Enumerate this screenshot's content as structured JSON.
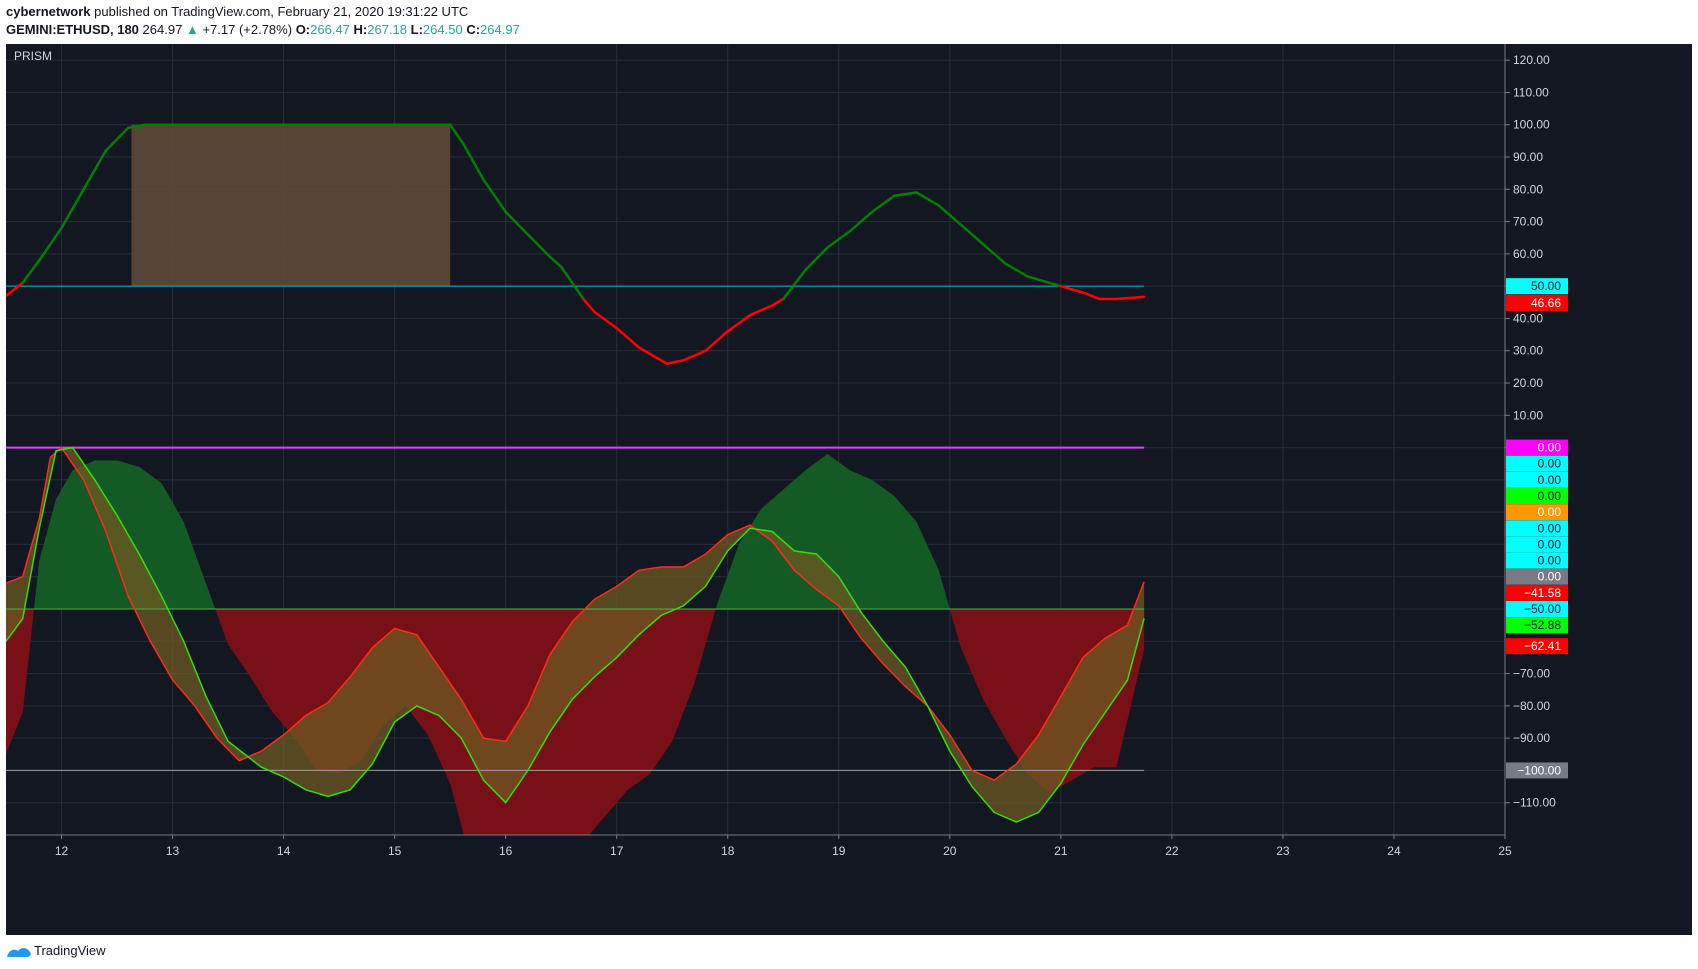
{
  "header": {
    "author": "cybernetwork",
    "published_text": "published on TradingView.com, February 21, 2020 19:31:22 UTC",
    "symbol": "GEMINI:ETHUSD, 180",
    "last": "264.97",
    "arrow": "▲",
    "change": "+7.17 (+2.78%)",
    "o_label": "O:",
    "o_value": "266.47",
    "h_label": "H:",
    "h_value": "267.18",
    "l_label": "L:",
    "l_value": "264.50",
    "c_label": "C:",
    "c_value": "264.97"
  },
  "footer": {
    "brand": "TradingView"
  },
  "chart_data": {
    "type": "line",
    "indicator": "PRISM",
    "x_axis_labels": [
      {
        "label": "12",
        "t": 12
      },
      {
        "label": "13",
        "t": 13
      },
      {
        "label": "14",
        "t": 14
      },
      {
        "label": "15",
        "t": 15
      },
      {
        "label": "16",
        "t": 16
      },
      {
        "label": "17",
        "t": 17
      },
      {
        "label": "18",
        "t": 18
      },
      {
        "label": "19",
        "t": 19
      },
      {
        "label": "20",
        "t": 20
      },
      {
        "label": "21",
        "t": 21
      },
      {
        "label": "22",
        "t": 22
      },
      {
        "label": "23",
        "t": 23
      },
      {
        "label": "24",
        "t": 24
      },
      {
        "label": "25",
        "t": 25
      }
    ],
    "x_range": [
      11.5,
      25.0
    ],
    "y_range": [
      -120,
      125
    ],
    "y_ticks": [
      "120.00",
      "110.00",
      "100.00",
      "90.00",
      "80.00",
      "70.00",
      "60.00",
      "50.00",
      "40.00",
      "30.00",
      "20.00",
      "10.00",
      "0.00",
      "−70.00",
      "−80.00",
      "−90.00",
      "−110.00"
    ],
    "y_tick_values": [
      120,
      110,
      100,
      90,
      80,
      70,
      60,
      50,
      40,
      30,
      20,
      10,
      0,
      -70,
      -80,
      -90,
      -110
    ],
    "grid": true,
    "upper_oscillator": {
      "levels": [
        50
      ],
      "points": [
        [
          11.5,
          47
        ],
        [
          11.65,
          51
        ],
        [
          11.8,
          58
        ],
        [
          12.0,
          68
        ],
        [
          12.2,
          80
        ],
        [
          12.4,
          92
        ],
        [
          12.6,
          99
        ],
        [
          12.75,
          100
        ],
        [
          13.0,
          100
        ],
        [
          13.5,
          100
        ],
        [
          14.0,
          100
        ],
        [
          14.5,
          100
        ],
        [
          15.0,
          100
        ],
        [
          15.5,
          100
        ],
        [
          15.62,
          94
        ],
        [
          15.8,
          83
        ],
        [
          16.0,
          73
        ],
        [
          16.2,
          66
        ],
        [
          16.4,
          59
        ],
        [
          16.5,
          56
        ],
        [
          16.7,
          46
        ],
        [
          16.8,
          42
        ],
        [
          17.0,
          37
        ],
        [
          17.2,
          31
        ],
        [
          17.45,
          26
        ],
        [
          17.6,
          27
        ],
        [
          17.8,
          30
        ],
        [
          18.0,
          36
        ],
        [
          18.2,
          41
        ],
        [
          18.4,
          44
        ],
        [
          18.5,
          46
        ],
        [
          18.7,
          55
        ],
        [
          18.9,
          62
        ],
        [
          19.1,
          67
        ],
        [
          19.3,
          73
        ],
        [
          19.5,
          78
        ],
        [
          19.7,
          79
        ],
        [
          19.9,
          75
        ],
        [
          20.1,
          69
        ],
        [
          20.3,
          63
        ],
        [
          20.5,
          57
        ],
        [
          20.7,
          53
        ],
        [
          20.9,
          51
        ],
        [
          21.0,
          50
        ],
        [
          21.1,
          49
        ],
        [
          21.2,
          48
        ],
        [
          21.35,
          46
        ],
        [
          21.5,
          46
        ],
        [
          21.75,
          46.66
        ]
      ],
      "overbought_zone": {
        "t_start": 12.63,
        "t_end": 15.5,
        "y_low": 50,
        "y_high": 100
      }
    },
    "lower_oscillator": {
      "levels": [
        0,
        -50,
        -100
      ],
      "fast_line": [
        [
          11.5,
          -42
        ],
        [
          11.65,
          -40
        ],
        [
          11.8,
          -22
        ],
        [
          11.9,
          -3
        ],
        [
          12.0,
          0
        ],
        [
          12.2,
          -10
        ],
        [
          12.4,
          -26
        ],
        [
          12.6,
          -46
        ],
        [
          12.8,
          -60
        ],
        [
          13.0,
          -72
        ],
        [
          13.2,
          -80
        ],
        [
          13.4,
          -90
        ],
        [
          13.6,
          -97
        ],
        [
          13.8,
          -94
        ],
        [
          14.0,
          -89
        ],
        [
          14.2,
          -83
        ],
        [
          14.4,
          -79
        ],
        [
          14.6,
          -71
        ],
        [
          14.8,
          -62
        ],
        [
          15.0,
          -56
        ],
        [
          15.2,
          -58
        ],
        [
          15.4,
          -68
        ],
        [
          15.6,
          -78
        ],
        [
          15.8,
          -90
        ],
        [
          16.0,
          -91
        ],
        [
          16.2,
          -80
        ],
        [
          16.4,
          -64
        ],
        [
          16.6,
          -54
        ],
        [
          16.8,
          -47
        ],
        [
          17.0,
          -43
        ],
        [
          17.2,
          -38
        ],
        [
          17.4,
          -37
        ],
        [
          17.6,
          -37
        ],
        [
          17.8,
          -33
        ],
        [
          18.0,
          -27
        ],
        [
          18.2,
          -24
        ],
        [
          18.4,
          -29
        ],
        [
          18.6,
          -38
        ],
        [
          18.8,
          -44
        ],
        [
          19.0,
          -49
        ],
        [
          19.2,
          -59
        ],
        [
          19.4,
          -67
        ],
        [
          19.6,
          -74
        ],
        [
          19.8,
          -80
        ],
        [
          20.0,
          -89
        ],
        [
          20.2,
          -100
        ],
        [
          20.4,
          -103
        ],
        [
          20.6,
          -98
        ],
        [
          20.8,
          -89
        ],
        [
          21.0,
          -77
        ],
        [
          21.2,
          -65
        ],
        [
          21.4,
          -59
        ],
        [
          21.6,
          -55
        ],
        [
          21.75,
          -41.58
        ]
      ],
      "slow_line": [
        [
          11.5,
          -60
        ],
        [
          11.65,
          -53
        ],
        [
          11.8,
          -25
        ],
        [
          11.95,
          -1
        ],
        [
          12.1,
          0
        ],
        [
          12.3,
          -10
        ],
        [
          12.5,
          -21
        ],
        [
          12.7,
          -33
        ],
        [
          12.9,
          -46
        ],
        [
          13.1,
          -60
        ],
        [
          13.3,
          -77
        ],
        [
          13.5,
          -91
        ],
        [
          13.8,
          -99
        ],
        [
          14.0,
          -102
        ],
        [
          14.2,
          -106
        ],
        [
          14.4,
          -108
        ],
        [
          14.6,
          -106
        ],
        [
          14.8,
          -98
        ],
        [
          15.0,
          -85
        ],
        [
          15.2,
          -80
        ],
        [
          15.4,
          -83
        ],
        [
          15.6,
          -90
        ],
        [
          15.8,
          -103
        ],
        [
          16.0,
          -110
        ],
        [
          16.2,
          -100
        ],
        [
          16.4,
          -88
        ],
        [
          16.6,
          -78
        ],
        [
          16.8,
          -71
        ],
        [
          17.0,
          -65
        ],
        [
          17.2,
          -58
        ],
        [
          17.4,
          -52
        ],
        [
          17.6,
          -49
        ],
        [
          17.8,
          -43
        ],
        [
          18.0,
          -32
        ],
        [
          18.2,
          -25
        ],
        [
          18.4,
          -26
        ],
        [
          18.6,
          -32
        ],
        [
          18.8,
          -33
        ],
        [
          19.0,
          -40
        ],
        [
          19.2,
          -51
        ],
        [
          19.4,
          -60
        ],
        [
          19.6,
          -68
        ],
        [
          19.8,
          -80
        ],
        [
          20.0,
          -94
        ],
        [
          20.2,
          -105
        ],
        [
          20.4,
          -113
        ],
        [
          20.6,
          -116
        ],
        [
          20.8,
          -113
        ],
        [
          21.0,
          -104
        ],
        [
          21.2,
          -92
        ],
        [
          21.4,
          -82
        ],
        [
          21.6,
          -72
        ],
        [
          21.75,
          -52.88
        ]
      ],
      "histogram": [
        [
          11.5,
          -95
        ],
        [
          11.65,
          -82
        ],
        [
          11.8,
          -35
        ],
        [
          11.95,
          -16
        ],
        [
          12.1,
          -7
        ],
        [
          12.3,
          -4
        ],
        [
          12.5,
          -4
        ],
        [
          12.7,
          -6
        ],
        [
          12.9,
          -11
        ],
        [
          13.1,
          -23
        ],
        [
          13.3,
          -42
        ],
        [
          13.5,
          -61
        ],
        [
          13.7,
          -71
        ],
        [
          13.9,
          -82
        ],
        [
          14.1,
          -90
        ],
        [
          14.3,
          -100
        ],
        [
          14.5,
          -101
        ],
        [
          14.7,
          -97
        ],
        [
          14.9,
          -86
        ],
        [
          15.1,
          -80
        ],
        [
          15.3,
          -89
        ],
        [
          15.5,
          -104
        ],
        [
          15.7,
          -130
        ],
        [
          15.9,
          -144
        ],
        [
          16.1,
          -141
        ],
        [
          16.3,
          -134
        ],
        [
          16.5,
          -129
        ],
        [
          16.7,
          -122
        ],
        [
          16.9,
          -114
        ],
        [
          17.1,
          -106
        ],
        [
          17.3,
          -101
        ],
        [
          17.5,
          -91
        ],
        [
          17.7,
          -73
        ],
        [
          17.9,
          -49
        ],
        [
          18.1,
          -30
        ],
        [
          18.3,
          -19
        ],
        [
          18.5,
          -13
        ],
        [
          18.7,
          -7
        ],
        [
          18.9,
          -2
        ],
        [
          19.1,
          -7
        ],
        [
          19.3,
          -10
        ],
        [
          19.5,
          -15
        ],
        [
          19.7,
          -23
        ],
        [
          19.9,
          -38
        ],
        [
          20.1,
          -62
        ],
        [
          20.3,
          -78
        ],
        [
          20.5,
          -90
        ],
        [
          20.7,
          -101
        ],
        [
          20.9,
          -107
        ],
        [
          21.1,
          -103
        ],
        [
          21.3,
          -99
        ],
        [
          21.5,
          -99
        ],
        [
          21.75,
          -62.41
        ]
      ]
    },
    "price_labels": [
      {
        "text": "50.00",
        "y": 50,
        "color": "#00ffff",
        "text_color": "#131722"
      },
      {
        "text": "46.66",
        "y": 44.8,
        "color": "#ff0000",
        "text_color": "#ffffff"
      },
      {
        "text": "0.00",
        "y": 0,
        "color": "#ff00ff",
        "text_color": "#ffffff"
      },
      {
        "text": "0.00",
        "y": -5,
        "color": "#00ffff",
        "text_color": "#131722"
      },
      {
        "text": "0.00",
        "y": -10,
        "color": "#00ffff",
        "text_color": "#131722"
      },
      {
        "text": "0.00",
        "y": -15,
        "color": "#00ff00",
        "text_color": "#131722"
      },
      {
        "text": "0.00",
        "y": -20,
        "color": "#ff9800",
        "text_color": "#ffffff"
      },
      {
        "text": "0.00",
        "y": -25,
        "color": "#00ffff",
        "text_color": "#131722"
      },
      {
        "text": "0.00",
        "y": -30,
        "color": "#00ffff",
        "text_color": "#131722"
      },
      {
        "text": "0.00",
        "y": -35,
        "color": "#00ffff",
        "text_color": "#131722"
      },
      {
        "text": "0.00",
        "y": -40,
        "color": "#787b86",
        "text_color": "#ffffff"
      },
      {
        "text": "−41.58",
        "y": -45,
        "color": "#ff0000",
        "text_color": "#ffffff"
      },
      {
        "text": "−50.00",
        "y": -50,
        "color": "#00ffff",
        "text_color": "#131722"
      },
      {
        "text": "−52.88",
        "y": -55,
        "color": "#00ff00",
        "text_color": "#131722"
      },
      {
        "text": "−62.41",
        "y": -61.5,
        "color": "#ff0000",
        "text_color": "#ffffff"
      },
      {
        "text": "−100.00",
        "y": -100,
        "color": "#787b86",
        "text_color": "#ffffff"
      }
    ],
    "colors": {
      "background": "#131722",
      "grid": "#2a2e39",
      "axis_text": "#d1d4dc",
      "bull": "#008000",
      "bear": "#ff0000",
      "level_50": "#00bcd4",
      "level_0": "#e040fb",
      "level_minus50": "#4caf50",
      "level_minus100": "#9e9e9e",
      "zone_fill": "#5d4a37",
      "green_area": "#145a24",
      "red_area": "#7a1017",
      "ribbon_fill": "#6e5a20",
      "fast_line": "#ff2a1a",
      "slow_line": "#33dd11"
    }
  }
}
